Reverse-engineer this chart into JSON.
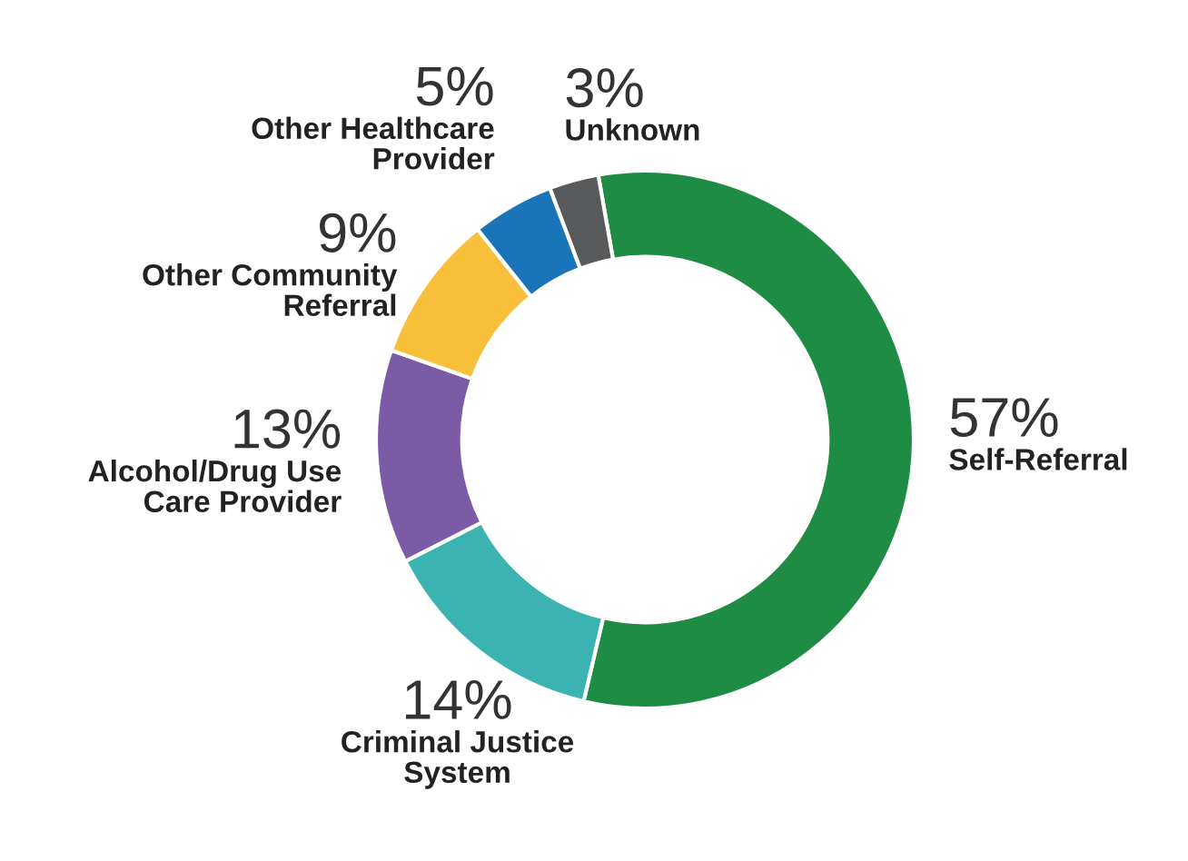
{
  "chart_data": {
    "type": "donut",
    "categories": [
      "Self-Referral",
      "Criminal Justice\nSystem",
      "Alcohol/Drug Use\nCare Provider",
      "Other Community\nReferral",
      "Other Healthcare\nProvider",
      "Unknown"
    ],
    "values": [
      57,
      14,
      13,
      9,
      5,
      3
    ],
    "colors": [
      "#1e8c45",
      "#3bb3b0",
      "#7b5aa6",
      "#f8bf3a",
      "#1a75b8",
      "#58595b"
    ],
    "value_labels": [
      "57%",
      "14%",
      "13%",
      "9%",
      "5%",
      "3%"
    ],
    "legend": false
  }
}
